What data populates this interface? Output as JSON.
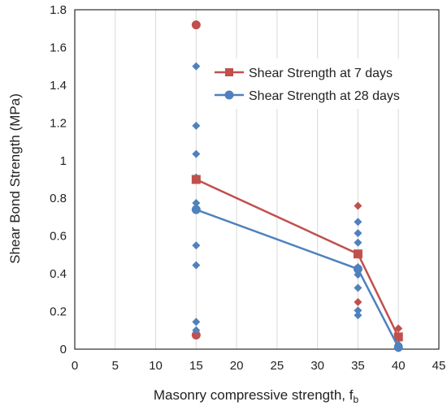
{
  "chart_data": {
    "type": "line",
    "xlabel": "Masonry compressive strength, f",
    "xlabel_subscript": "b",
    "ylabel": "Shear Bond Strength (MPa)",
    "xlim": [
      0,
      45
    ],
    "ylim": [
      0,
      1.8
    ],
    "x_ticks": [
      0,
      5,
      10,
      15,
      20,
      25,
      30,
      35,
      40,
      45
    ],
    "y_ticks": [
      0,
      0.2,
      0.4,
      0.6,
      0.8,
      1,
      1.2,
      1.4,
      1.6,
      1.8
    ],
    "y_tick_labels": [
      "0",
      "0.2",
      "0.4",
      "0.6",
      "0.8",
      "1",
      "1.2",
      "1.4",
      "1.6",
      "1.8"
    ],
    "grid": "vertical",
    "legend_position": "top-right",
    "series": [
      {
        "name": "Shear Strength at 7 days",
        "color": "#c0504d",
        "marker": "square",
        "x": [
          15,
          35,
          40
        ],
        "y": [
          0.9,
          0.505,
          0.065
        ]
      },
      {
        "name": "Shear Strength at 28 days",
        "color": "#4f81bd",
        "marker": "circle",
        "x": [
          15,
          35,
          40
        ],
        "y": [
          0.74,
          0.425,
          0.01
        ]
      }
    ],
    "scatter": [
      {
        "color": "#c0504d",
        "points": [
          [
            15,
            1.72,
            "circle"
          ],
          [
            15,
            0.075,
            "circle"
          ],
          [
            35,
            0.76,
            "diamond"
          ],
          [
            35,
            0.25,
            "diamond"
          ],
          [
            40,
            0.11,
            "diamond"
          ],
          [
            40,
            0.07,
            "diamond"
          ]
        ]
      },
      {
        "color": "#4f81bd",
        "points": [
          [
            15,
            1.5,
            "diamond"
          ],
          [
            15,
            1.185,
            "diamond"
          ],
          [
            15,
            1.035,
            "diamond"
          ],
          [
            15,
            0.91,
            "diamond"
          ],
          [
            15,
            0.775,
            "diamond"
          ],
          [
            15,
            0.75,
            "diamond"
          ],
          [
            15,
            0.55,
            "diamond"
          ],
          [
            15,
            0.445,
            "diamond"
          ],
          [
            15,
            0.145,
            "diamond"
          ],
          [
            15,
            0.1,
            "diamond"
          ],
          [
            35,
            0.675,
            "diamond"
          ],
          [
            35,
            0.615,
            "diamond"
          ],
          [
            35,
            0.565,
            "diamond"
          ],
          [
            35,
            0.435,
            "diamond"
          ],
          [
            35,
            0.395,
            "diamond"
          ],
          [
            35,
            0.325,
            "diamond"
          ],
          [
            35,
            0.205,
            "diamond"
          ],
          [
            35,
            0.18,
            "diamond"
          ],
          [
            40,
            0.025,
            "diamond"
          ],
          [
            40,
            0.005,
            "diamond"
          ]
        ]
      }
    ]
  }
}
